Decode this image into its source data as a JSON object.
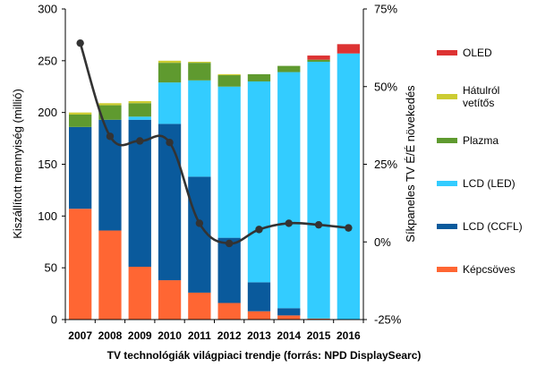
{
  "chart_data": {
    "type": "bar",
    "stacked": true,
    "caption": "TV technológiák világpiaci trendje (forrás: NPD DisplaySearc)",
    "categories": [
      "2007",
      "2008",
      "2009",
      "2010",
      "2011",
      "2012",
      "2013",
      "2014",
      "2015",
      "2016"
    ],
    "ylabel": "Kiszállított mennyiség (millió)",
    "y2label": "Síkpaneles TV É/É növekedés",
    "ylim": [
      0,
      300
    ],
    "yticks": [
      "0",
      "50",
      "100",
      "150",
      "200",
      "250",
      "300"
    ],
    "y2lim": [
      -25,
      75
    ],
    "y2ticks": [
      "-25%",
      "0%",
      "25%",
      "50%",
      "75%"
    ],
    "grid": false,
    "legend_position": "right",
    "series": [
      {
        "name": "Képcsöves",
        "color": "#ff6633",
        "values": [
          107,
          86,
          51,
          38,
          26,
          16,
          8,
          4,
          1,
          0
        ]
      },
      {
        "name": "LCD (CCFL)",
        "color": "#0a5a9c",
        "values": [
          79,
          107,
          142,
          151,
          112,
          63,
          28,
          7,
          0,
          0
        ]
      },
      {
        "name": "LCD (LED)",
        "color": "#33ccff",
        "values": [
          0,
          0,
          3,
          40,
          93,
          146,
          194,
          228,
          248,
          257
        ]
      },
      {
        "name": "Plazma",
        "color": "#5f9a2f",
        "values": [
          12,
          14,
          13,
          19,
          17,
          11,
          7,
          6,
          2,
          0
        ]
      },
      {
        "name": "Hátulról vetítős",
        "color": "#cccc33",
        "values": [
          2,
          2,
          2,
          2,
          1,
          1,
          0,
          0,
          0,
          0
        ]
      },
      {
        "name": "OLED",
        "color": "#dd3333",
        "values": [
          0,
          0,
          0,
          0,
          0,
          0,
          0,
          0,
          4,
          9
        ]
      }
    ],
    "line_series": {
      "name": "Síkpaneles TV É/É növekedés",
      "color": "#333333",
      "axis": "right",
      "values": [
        64,
        34,
        32.5,
        32,
        6,
        -0.5,
        4,
        6,
        5.5,
        4.5
      ]
    }
  }
}
